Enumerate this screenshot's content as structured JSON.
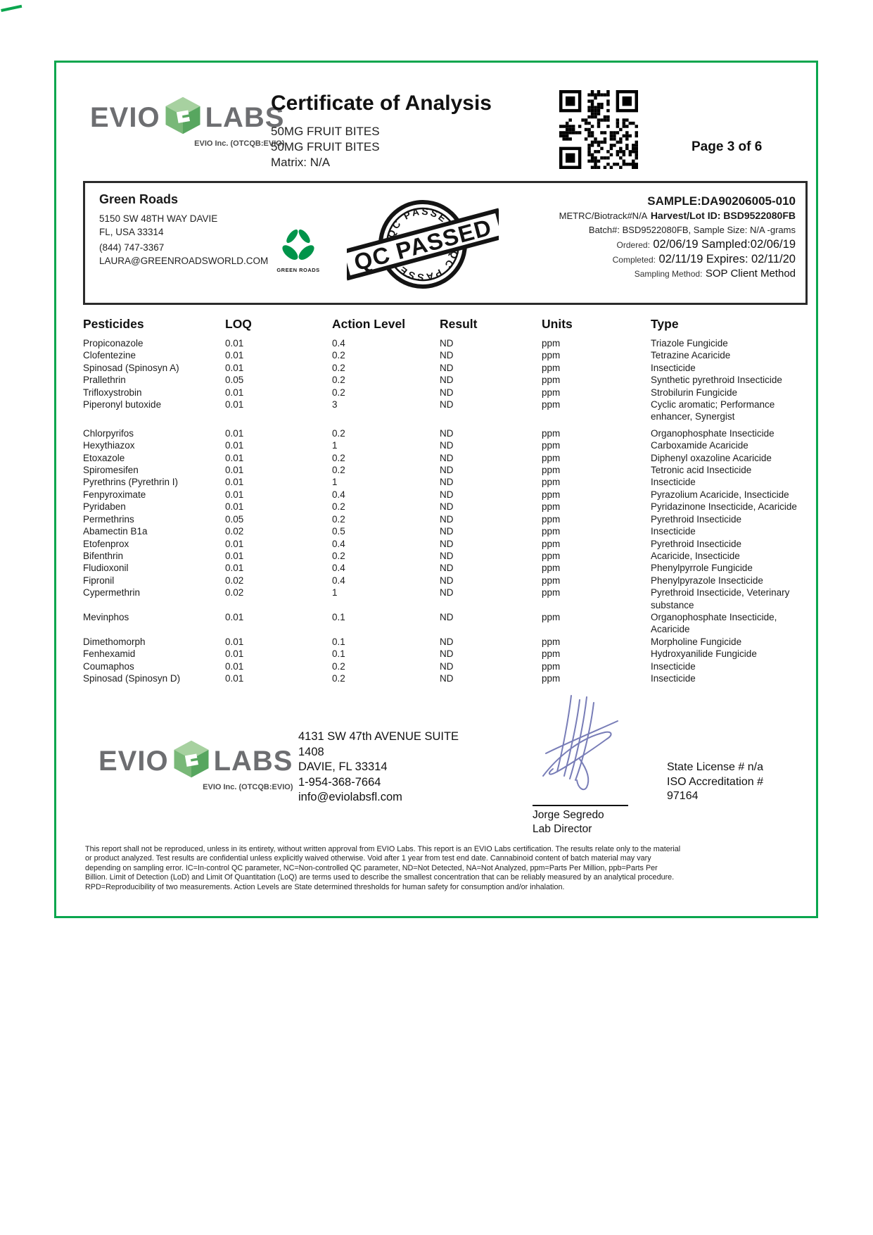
{
  "page": {
    "page_label": "Page 3 of 6"
  },
  "brand": {
    "name_left": "EVIO",
    "name_right": "LABS",
    "tagline": "EVIO Inc. (OTCQB:EVIO)"
  },
  "header": {
    "title": "Certificate of Analysis",
    "product_line1": "50MG FRUIT BITES",
    "product_line2": "50MG FRUIT BITES",
    "matrix": "Matrix: N/A"
  },
  "client": {
    "name": "Green Roads",
    "address1": "5150 SW 48TH WAY DAVIE",
    "address2": "FL, USA 33314",
    "phone": "(844) 747-3367",
    "email": "LAURA@GREENROADSWORLD.COM",
    "logo_text": "GREEN ROADS"
  },
  "stamp": {
    "text": "QC PASSED"
  },
  "sample": {
    "sample_id": "SAMPLE:DA90206005-010",
    "metrc": "METRC/Biotrack#N/A",
    "harvest_lot": "Harvest/Lot ID: BSD9522080FB",
    "batch_line": "Batch#: BSD9522080FB, Sample Size: N/A -grams",
    "ordered_label": "Ordered:",
    "ordered_value": "02/06/19",
    "sampled_label": "Sampled:",
    "sampled_value": "02/06/19",
    "completed_label": "Completed:",
    "completed_value": "02/11/19",
    "expires_label": "Expires:",
    "expires_value": "02/11/20",
    "sampling_method_label": "Sampling Method:",
    "sampling_method_value": "SOP Client Method"
  },
  "table": {
    "headers": [
      "Pesticides",
      "LOQ",
      "Action Level",
      "Result",
      "Units",
      "Type"
    ],
    "gap_rows": [
      6
    ],
    "rows": [
      [
        "Propiconazole",
        "0.01",
        "0.4",
        "ND",
        "ppm",
        "Triazole Fungicide"
      ],
      [
        "Clofentezine",
        "0.01",
        "0.2",
        "ND",
        "ppm",
        "Tetrazine Acaricide"
      ],
      [
        "Spinosad (Spinosyn A)",
        "0.01",
        "0.2",
        "ND",
        "ppm",
        "Insecticide"
      ],
      [
        "Prallethrin",
        "0.05",
        "0.2",
        "ND",
        "ppm",
        "Synthetic pyrethroid Insecticide"
      ],
      [
        "Trifloxystrobin",
        "0.01",
        "0.2",
        "ND",
        "ppm",
        "Strobilurin Fungicide"
      ],
      [
        "Piperonyl butoxide",
        "0.01",
        "3",
        "ND",
        "ppm",
        "Cyclic aromatic; Performance enhancer, Synergist"
      ],
      [
        "Chlorpyrifos",
        "0.01",
        "0.2",
        "ND",
        "ppm",
        "Organophosphate Insecticide"
      ],
      [
        "Hexythiazox",
        "0.01",
        "1",
        "ND",
        "ppm",
        "Carboxamide Acaricide"
      ],
      [
        "Etoxazole",
        "0.01",
        "0.2",
        "ND",
        "ppm",
        "Diphenyl oxazoline Acaricide"
      ],
      [
        "Spiromesifen",
        "0.01",
        "0.2",
        "ND",
        "ppm",
        "Tetronic acid Insecticide"
      ],
      [
        "Pyrethrins (Pyrethrin I)",
        "0.01",
        "1",
        "ND",
        "ppm",
        "Insecticide"
      ],
      [
        "Fenpyroximate",
        "0.01",
        "0.4",
        "ND",
        "ppm",
        "Pyrazolium Acaricide, Insecticide"
      ],
      [
        "Pyridaben",
        "0.01",
        "0.2",
        "ND",
        "ppm",
        "Pyridazinone Insecticide, Acaricide"
      ],
      [
        "Permethrins",
        "0.05",
        "0.2",
        "ND",
        "ppm",
        "Pyrethroid Insecticide"
      ],
      [
        "Abamectin B1a",
        "0.02",
        "0.5",
        "ND",
        "ppm",
        "Insecticide"
      ],
      [
        "Etofenprox",
        "0.01",
        "0.4",
        "ND",
        "ppm",
        "Pyrethroid Insecticide"
      ],
      [
        "Bifenthrin",
        "0.01",
        "0.2",
        "ND",
        "ppm",
        "Acaricide, Insecticide"
      ],
      [
        "Fludioxonil",
        "0.01",
        "0.4",
        "ND",
        "ppm",
        "Phenylpyrrole Fungicide"
      ],
      [
        "Fipronil",
        "0.02",
        "0.4",
        "ND",
        "ppm",
        "Phenylpyrazole Insecticide"
      ],
      [
        "Cypermethrin",
        "0.02",
        "1",
        "ND",
        "ppm",
        "Pyrethroid Insecticide, Veterinary substance"
      ],
      [
        "Mevinphos",
        "0.01",
        "0.1",
        "ND",
        "ppm",
        "Organophosphate Insecticide, Acaricide"
      ],
      [
        "Dimethomorph",
        "0.01",
        "0.1",
        "ND",
        "ppm",
        "Morpholine Fungicide"
      ],
      [
        "Fenhexamid",
        "0.01",
        "0.1",
        "ND",
        "ppm",
        "Hydroxyanilide Fungicide"
      ],
      [
        "Coumaphos",
        "0.01",
        "0.2",
        "ND",
        "ppm",
        "Insecticide"
      ],
      [
        "Spinosad (Spinosyn D)",
        "0.01",
        "0.2",
        "ND",
        "ppm",
        "Insecticide"
      ]
    ]
  },
  "footer": {
    "address": [
      "4131 SW 47th AVENUE SUITE",
      "1408",
      "DAVIE, FL 33314",
      "1-954-368-7664",
      "info@eviolabsfl.com"
    ],
    "signer_name": "Jorge Segredo",
    "signer_title": "Lab Director",
    "license_line1": "State License # n/a",
    "license_line2": "ISO Accreditation #",
    "license_line3": "97164",
    "disclaimer": "This report shall not be reproduced, unless in its entirety, without written approval from EVIO Labs. This report is an EVIO Labs certification. The results relate only to the material or product analyzed. Test results are confidential unless explicitly waived otherwise. Void after 1 year from test end date. Cannabinoid content of batch material may vary depending on sampling error. IC=In-control QC parameter, NC=Non-controlled QC parameter, ND=Not Detected, NA=Not Analyzed, ppm=Parts Per Million, ppb=Parts Per Billion. Limit of Detection (LoD) and Limit Of Quantitation (LoQ) are terms used to describe the smallest concentration that can be reliably measured by an analytical procedure. RPD=Reproducibility of two measurements. Action Levels are State determined thresholds for human safety for consumption and/or inhalation."
  },
  "colors": {
    "frame_green": "#0aa64e",
    "logo_gray": "#6d6e71",
    "leaf_green": "#00944a",
    "signature_blue": "#6a6fb0",
    "stamp_black": "#141414"
  }
}
